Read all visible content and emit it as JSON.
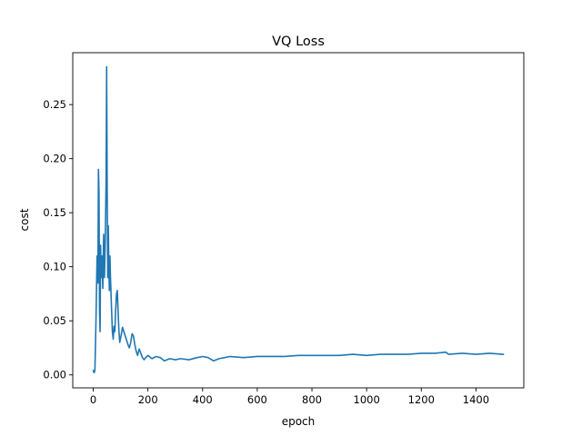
{
  "chart_data": {
    "type": "line",
    "title": "VQ Loss",
    "xlabel": "epoch",
    "ylabel": "cost",
    "xlim": [
      -75,
      1575
    ],
    "ylim": [
      -0.012,
      0.298
    ],
    "xticks": [
      0,
      200,
      400,
      600,
      800,
      1000,
      1200,
      1400
    ],
    "yticks": [
      0.0,
      0.05,
      0.1,
      0.15,
      0.2,
      0.25
    ],
    "xtick_labels": [
      "0",
      "200",
      "400",
      "600",
      "800",
      "1000",
      "1200",
      "1400"
    ],
    "ytick_labels": [
      "0.00",
      "0.05",
      "0.10",
      "0.15",
      "0.20",
      "0.25"
    ],
    "grid": false,
    "series": [
      {
        "color": "#1f77b4",
        "x": [
          0,
          3,
          6,
          10,
          14,
          17,
          19,
          21,
          23,
          25,
          27,
          29,
          32,
          35,
          38,
          41,
          44,
          47,
          49,
          51,
          53,
          55,
          57,
          59,
          61,
          63,
          65,
          67,
          70,
          73,
          76,
          79,
          82,
          85,
          88,
          91,
          94,
          97,
          100,
          103,
          107,
          112,
          117,
          122,
          127,
          132,
          137,
          142,
          147,
          152,
          157,
          162,
          168,
          174,
          180,
          186,
          192,
          200,
          215,
          230,
          245,
          260,
          280,
          300,
          320,
          350,
          380,
          400,
          420,
          440,
          460,
          480,
          500,
          550,
          600,
          650,
          700,
          750,
          800,
          850,
          900,
          950,
          1000,
          1050,
          1100,
          1150,
          1200,
          1250,
          1290,
          1300,
          1350,
          1400,
          1450,
          1500
        ],
        "y": [
          0.004,
          0.002,
          0.004,
          0.05,
          0.11,
          0.085,
          0.19,
          0.17,
          0.06,
          0.04,
          0.12,
          0.09,
          0.11,
          0.08,
          0.13,
          0.09,
          0.125,
          0.18,
          0.285,
          0.17,
          0.09,
          0.138,
          0.1,
          0.078,
          0.11,
          0.09,
          0.076,
          0.06,
          0.04,
          0.033,
          0.045,
          0.04,
          0.06,
          0.075,
          0.078,
          0.058,
          0.04,
          0.03,
          0.034,
          0.038,
          0.044,
          0.04,
          0.036,
          0.032,
          0.028,
          0.025,
          0.03,
          0.038,
          0.036,
          0.028,
          0.022,
          0.018,
          0.024,
          0.02,
          0.016,
          0.014,
          0.016,
          0.018,
          0.015,
          0.017,
          0.016,
          0.013,
          0.015,
          0.014,
          0.015,
          0.014,
          0.016,
          0.017,
          0.016,
          0.013,
          0.015,
          0.016,
          0.017,
          0.016,
          0.017,
          0.017,
          0.017,
          0.018,
          0.018,
          0.018,
          0.018,
          0.019,
          0.018,
          0.019,
          0.019,
          0.019,
          0.02,
          0.02,
          0.021,
          0.019,
          0.02,
          0.019,
          0.02,
          0.019
        ]
      }
    ]
  }
}
